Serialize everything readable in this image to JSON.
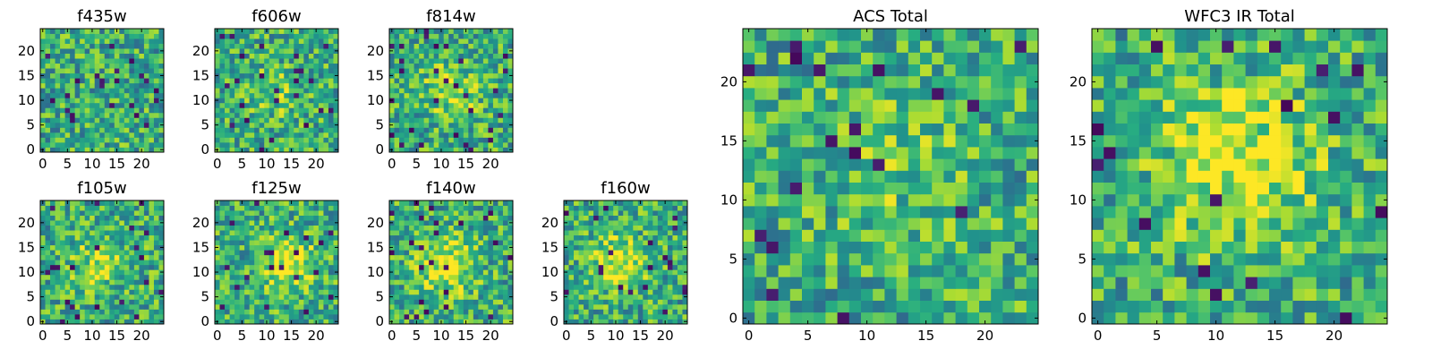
{
  "chart_data": [
    {
      "type": "heatmap",
      "title": "f435w",
      "grid": false,
      "colormap": "viridis",
      "xlim": [
        0,
        24
      ],
      "ylim": [
        0,
        24
      ],
      "xticks": [
        "0",
        "5",
        "10",
        "15",
        "20"
      ],
      "yticks": [
        "0",
        "5",
        "10",
        "15",
        "20"
      ],
      "pixels": [
        25,
        25
      ],
      "peak": "none",
      "peak_center": [
        12,
        12
      ]
    },
    {
      "type": "heatmap",
      "title": "f606w",
      "grid": false,
      "colormap": "viridis",
      "xlim": [
        0,
        24
      ],
      "ylim": [
        0,
        24
      ],
      "xticks": [
        "0",
        "5",
        "10",
        "15",
        "20"
      ],
      "yticks": [
        "0",
        "5",
        "10",
        "15",
        "20"
      ],
      "pixels": [
        25,
        25
      ],
      "peak": "weak",
      "peak_center": [
        12,
        12
      ]
    },
    {
      "type": "heatmap",
      "title": "f814w",
      "grid": false,
      "colormap": "viridis",
      "xlim": [
        0,
        24
      ],
      "ylim": [
        0,
        24
      ],
      "xticks": [
        "0",
        "5",
        "10",
        "15",
        "20"
      ],
      "yticks": [
        "0",
        "5",
        "10",
        "15",
        "20"
      ],
      "pixels": [
        25,
        25
      ],
      "peak": "moderate",
      "peak_center": [
        12,
        12
      ]
    },
    {
      "type": "heatmap",
      "title": "f105w",
      "grid": false,
      "colormap": "viridis",
      "xlim": [
        0,
        24
      ],
      "ylim": [
        0,
        24
      ],
      "xticks": [
        "0",
        "5",
        "10",
        "15",
        "20"
      ],
      "yticks": [
        "0",
        "5",
        "10",
        "15",
        "20"
      ],
      "pixels": [
        25,
        25
      ],
      "peak": "moderate",
      "peak_center": [
        11,
        12
      ]
    },
    {
      "type": "heatmap",
      "title": "f125w",
      "grid": false,
      "colormap": "viridis",
      "xlim": [
        0,
        24
      ],
      "ylim": [
        0,
        24
      ],
      "xticks": [
        "0",
        "5",
        "10",
        "15",
        "20"
      ],
      "yticks": [
        "0",
        "5",
        "10",
        "15",
        "20"
      ],
      "pixels": [
        25,
        25
      ],
      "peak": "strong",
      "peak_center": [
        14,
        12
      ]
    },
    {
      "type": "heatmap",
      "title": "f140w",
      "grid": false,
      "colormap": "viridis",
      "xlim": [
        0,
        24
      ],
      "ylim": [
        0,
        24
      ],
      "xticks": [
        "0",
        "5",
        "10",
        "15",
        "20"
      ],
      "yticks": [
        "0",
        "5",
        "10",
        "15",
        "20"
      ],
      "pixels": [
        25,
        25
      ],
      "peak": "strong",
      "peak_center": [
        11,
        11
      ]
    },
    {
      "type": "heatmap",
      "title": "f160w",
      "grid": false,
      "colormap": "viridis",
      "xlim": [
        0,
        24
      ],
      "ylim": [
        0,
        24
      ],
      "xticks": [
        "0",
        "5",
        "10",
        "15",
        "20"
      ],
      "yticks": [
        "0",
        "5",
        "10",
        "15",
        "20"
      ],
      "pixels": [
        25,
        25
      ],
      "peak": "strong",
      "peak_center": [
        11,
        12
      ]
    },
    {
      "type": "heatmap",
      "title": "ACS Total",
      "grid": false,
      "colormap": "viridis",
      "xlim": [
        0,
        24
      ],
      "ylim": [
        0,
        24
      ],
      "xticks": [
        "0",
        "5",
        "10",
        "15",
        "20"
      ],
      "yticks": [
        "0",
        "5",
        "10",
        "15",
        "20"
      ],
      "pixels": [
        25,
        25
      ],
      "peak": "weak",
      "peak_center": [
        12,
        13
      ]
    },
    {
      "type": "heatmap",
      "title": "WFC3 IR Total",
      "grid": false,
      "colormap": "viridis",
      "xlim": [
        0,
        24
      ],
      "ylim": [
        0,
        24
      ],
      "xticks": [
        "0",
        "5",
        "10",
        "15",
        "20"
      ],
      "yticks": [
        "0",
        "5",
        "10",
        "15",
        "20"
      ],
      "pixels": [
        25,
        25
      ],
      "peak": "strong",
      "peak_center": [
        12,
        13
      ]
    }
  ],
  "colors": {
    "viridis_dark": "#440154",
    "viridis_teal": "#21908d",
    "viridis_green": "#5ec962",
    "viridis_yellow": "#fde725"
  }
}
